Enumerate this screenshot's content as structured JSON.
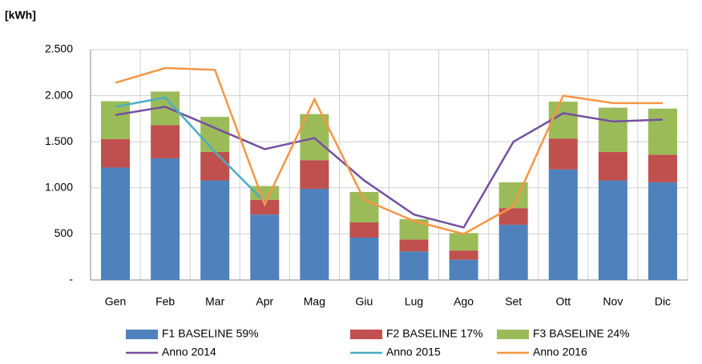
{
  "chart_data": {
    "type": "bar",
    "stacked": true,
    "y_label": "[kWh]",
    "categories": [
      "Gen",
      "Feb",
      "Mar",
      "Apr",
      "Mag",
      "Giu",
      "Lug",
      "Ago",
      "Set",
      "Ott",
      "Nov",
      "Dic"
    ],
    "series": [
      {
        "name": "F1 BASELINE 59%",
        "type": "bar",
        "color": "#4f81bd",
        "values": [
          1220,
          1320,
          1080,
          710,
          990,
          460,
          310,
          220,
          600,
          1200,
          1080,
          1060
        ]
      },
      {
        "name": "F2 BASELINE 17%",
        "type": "bar",
        "color": "#c0504d",
        "values": [
          310,
          360,
          310,
          160,
          310,
          165,
          130,
          100,
          180,
          335,
          310,
          300
        ]
      },
      {
        "name": "F3 BASELINE 24%",
        "type": "bar",
        "color": "#9bbb59",
        "values": [
          410,
          365,
          380,
          150,
          500,
          330,
          220,
          190,
          280,
          400,
          480,
          500
        ]
      },
      {
        "name": "Anno 2014",
        "type": "line",
        "color": "#7451a0",
        "values": [
          1790,
          1880,
          1650,
          1420,
          1540,
          1080,
          710,
          570,
          1500,
          1810,
          1720,
          1740
        ]
      },
      {
        "name": "Anno 2015",
        "type": "line",
        "color": "#4bacc6",
        "values": [
          1880,
          1980,
          1390,
          850,
          null,
          null,
          null,
          null,
          null,
          null,
          null,
          null
        ]
      },
      {
        "name": "Anno 2016",
        "type": "line",
        "color": "#f79646",
        "values": [
          2140,
          2300,
          2280,
          820,
          1960,
          870,
          640,
          500,
          800,
          2000,
          1920,
          1920
        ]
      }
    ],
    "ylim": [
      0,
      2500
    ],
    "yticks": [
      {
        "value": 0,
        "label": "-"
      },
      500,
      {
        "value": 1000,
        "label": "1.000"
      },
      {
        "value": 1500,
        "label": "1.500"
      },
      {
        "value": 2000,
        "label": "2.000"
      },
      {
        "value": 2500,
        "label": "2.500"
      }
    ],
    "grid": true
  }
}
